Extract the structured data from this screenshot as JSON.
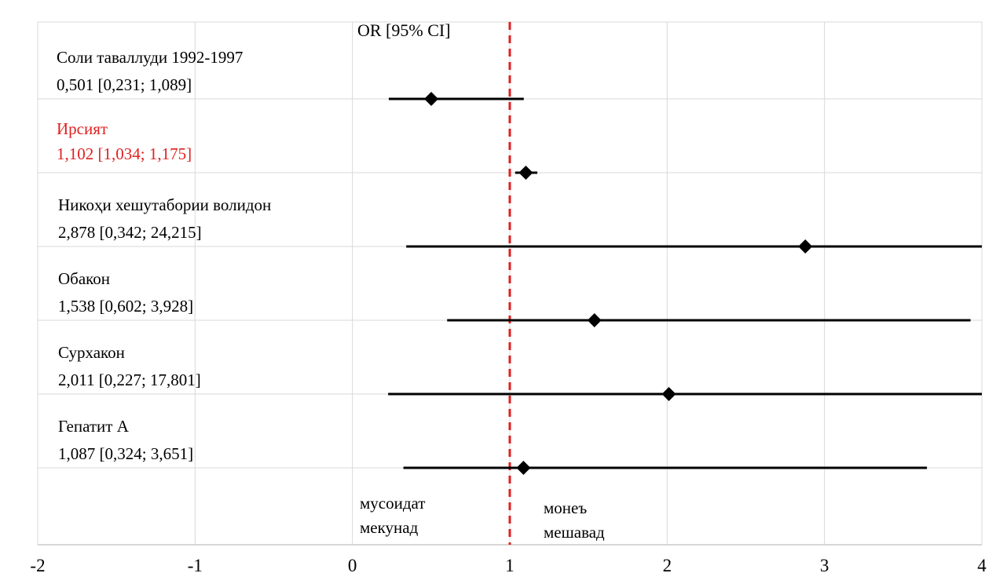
{
  "chart_data": {
    "type": "forest",
    "header": "OR [95% CI]",
    "xlim": [
      -2,
      4
    ],
    "x_ticks": [
      -2,
      -1,
      0,
      1,
      2,
      3,
      4
    ],
    "x_tick_labels": [
      "-2",
      "-1",
      "0",
      "1",
      "2",
      "3",
      "4"
    ],
    "reference_line": 1,
    "reference_line_color": "#e02020",
    "grid": true,
    "rows": [
      {
        "label": "Соли таваллуди 1992-1997",
        "stat": "0,501 [0,231; 1,089]",
        "or": 0.501,
        "lo": 0.231,
        "hi": 1.089,
        "color": "#000000"
      },
      {
        "label": "Ирсият",
        "stat": "1,102 [1,034; 1,175]",
        "or": 1.102,
        "lo": 1.034,
        "hi": 1.175,
        "color": "#e02020"
      },
      {
        "label": "Никоҳи хешутабории волидон",
        "stat": "2,878 [0,342; 24,215]",
        "or": 2.878,
        "lo": 0.342,
        "hi": 24.215,
        "color": "#000000"
      },
      {
        "label": "Обакон",
        "stat": "1,538 [0,602; 3,928]",
        "or": 1.538,
        "lo": 0.602,
        "hi": 3.928,
        "color": "#000000"
      },
      {
        "label": "Сурхакон",
        "stat": "2,011 [0,227; 17,801]",
        "or": 2.011,
        "lo": 0.227,
        "hi": 17.801,
        "color": "#000000"
      },
      {
        "label": "Гепатит А",
        "stat": "1,087 [0,324; 3,651]",
        "or": 1.087,
        "lo": 0.324,
        "hi": 3.651,
        "color": "#000000"
      }
    ],
    "annotations": {
      "left": [
        "мусоидат",
        "мекунад"
      ],
      "right": [
        "монеъ",
        "мешавад"
      ]
    }
  }
}
